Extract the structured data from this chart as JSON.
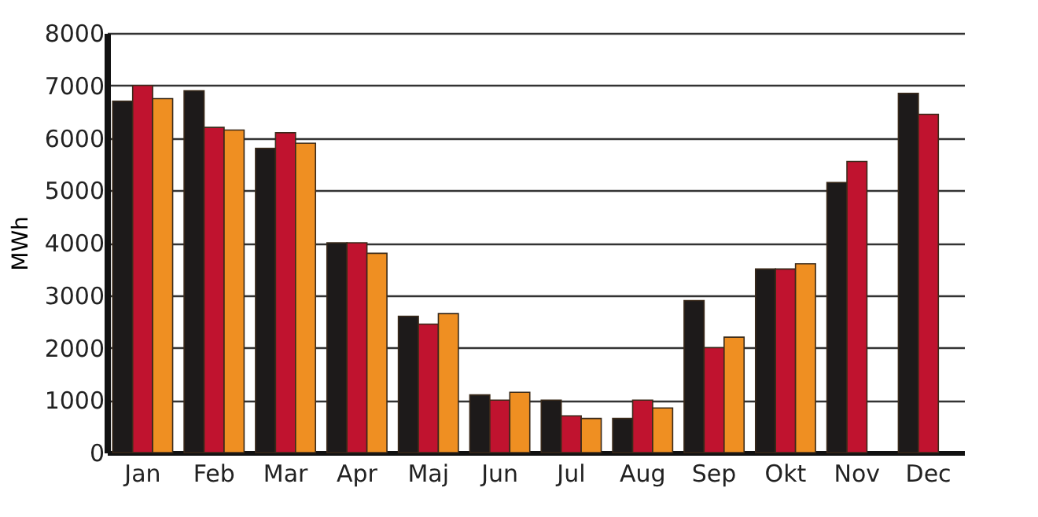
{
  "chart_data": {
    "type": "bar",
    "ylabel": "MWh",
    "categories": [
      "Jan",
      "Feb",
      "Mar",
      "Apr",
      "Maj",
      "Jun",
      "Jul",
      "Aug",
      "Sep",
      "Okt",
      "Nov",
      "Dec"
    ],
    "series": [
      {
        "color": "#1d1a1a",
        "values": [
          6700,
          6900,
          5800,
          4000,
          2600,
          1100,
          1000,
          650,
          2900,
          3500,
          5150,
          6850
        ]
      },
      {
        "color": "#c0132f",
        "values": [
          7000,
          6200,
          6100,
          4000,
          2450,
          1000,
          700,
          1000,
          2000,
          3500,
          5550,
          6450
        ]
      },
      {
        "color": "#ef8f22",
        "values": [
          6750,
          6150,
          5900,
          3800,
          2650,
          1150,
          650,
          850,
          2200,
          3600,
          null,
          null
        ]
      }
    ],
    "ylim": [
      0,
      8000
    ],
    "yticks": [
      0,
      1000,
      2000,
      3000,
      4000,
      5000,
      6000,
      7000,
      8000
    ],
    "grid": "y",
    "legend": false
  }
}
